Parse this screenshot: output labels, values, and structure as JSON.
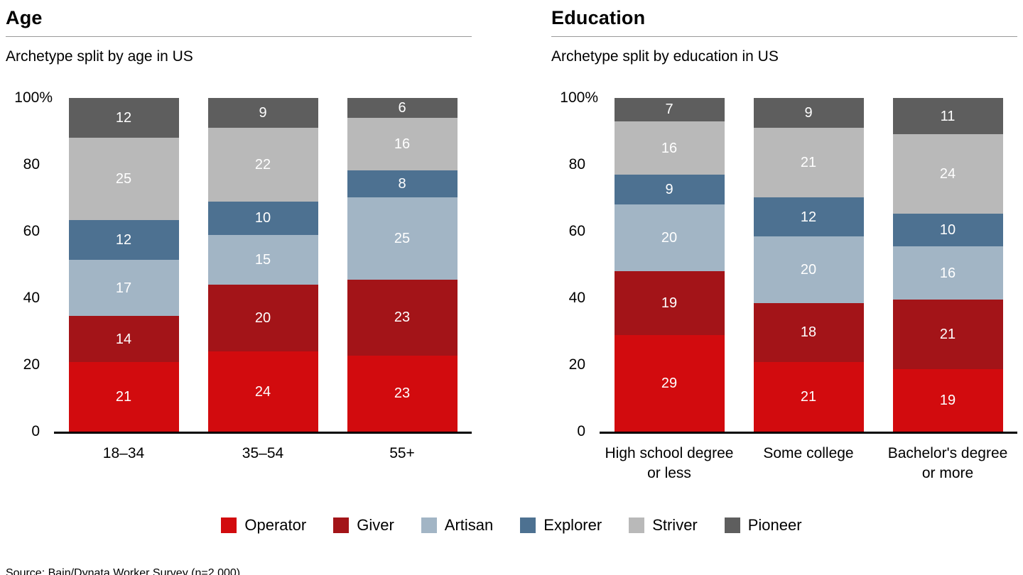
{
  "chart_data": [
    {
      "type": "bar",
      "stacked": true,
      "title": "Age",
      "subtitle": "Archetype split by age in US",
      "categories": [
        "18–34",
        "35–54",
        "55+"
      ],
      "series": [
        {
          "name": "Operator",
          "color": "#d20b0e",
          "values": [
            21,
            24,
            23
          ]
        },
        {
          "name": "Giver",
          "color": "#a31418",
          "values": [
            14,
            20,
            23
          ]
        },
        {
          "name": "Artisan",
          "color": "#a2b5c5",
          "values": [
            17,
            15,
            25
          ]
        },
        {
          "name": "Explorer",
          "color": "#4d7191",
          "values": [
            12,
            10,
            8
          ]
        },
        {
          "name": "Striver",
          "color": "#b9b9b9",
          "values": [
            25,
            22,
            16
          ]
        },
        {
          "name": "Pioneer",
          "color": "#5e5e5e",
          "values": [
            12,
            9,
            6
          ]
        }
      ],
      "ylim": [
        0,
        100
      ],
      "yticks": [
        "0",
        "20",
        "40",
        "60",
        "80",
        "100%"
      ],
      "grid": false,
      "legend_position": "bottom"
    },
    {
      "type": "bar",
      "stacked": true,
      "title": "Education",
      "subtitle": "Archetype split by education in US",
      "categories": [
        "High school degree or less",
        "Some college",
        "Bachelor's degree or more"
      ],
      "series": [
        {
          "name": "Operator",
          "color": "#d20b0e",
          "values": [
            29,
            21,
            19
          ]
        },
        {
          "name": "Giver",
          "color": "#a31418",
          "values": [
            19,
            18,
            21
          ]
        },
        {
          "name": "Artisan",
          "color": "#a2b5c5",
          "values": [
            20,
            20,
            16
          ]
        },
        {
          "name": "Explorer",
          "color": "#4d7191",
          "values": [
            9,
            12,
            10
          ]
        },
        {
          "name": "Striver",
          "color": "#b9b9b9",
          "values": [
            16,
            21,
            24
          ]
        },
        {
          "name": "Pioneer",
          "color": "#5e5e5e",
          "values": [
            7,
            9,
            11
          ]
        }
      ],
      "ylim": [
        0,
        100
      ],
      "yticks": [
        "0",
        "20",
        "40",
        "60",
        "80",
        "100%"
      ],
      "grid": false,
      "legend_position": "bottom"
    }
  ],
  "legend": [
    {
      "label": "Operator",
      "color": "#d20b0e"
    },
    {
      "label": "Giver",
      "color": "#a31418"
    },
    {
      "label": "Artisan",
      "color": "#a2b5c5"
    },
    {
      "label": "Explorer",
      "color": "#4d7191"
    },
    {
      "label": "Striver",
      "color": "#b9b9b9"
    },
    {
      "label": "Pioneer",
      "color": "#5e5e5e"
    }
  ],
  "source": "Source: Bain/Dynata Worker Survey (n=2,000)"
}
